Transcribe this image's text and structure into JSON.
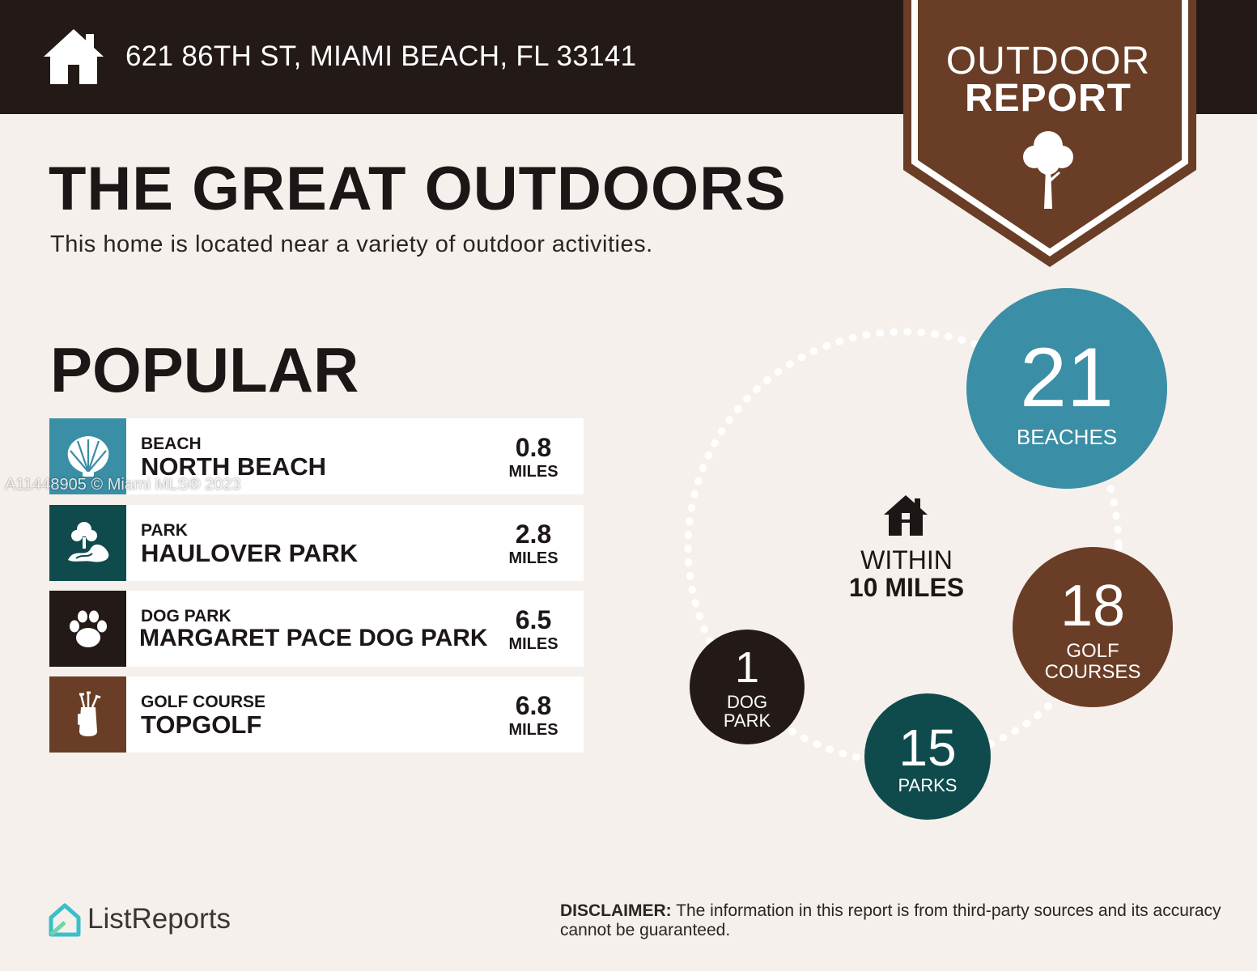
{
  "header": {
    "address": "621 86TH ST, MIAMI BEACH, FL 33141",
    "badge_line1": "OUTDOOR",
    "badge_line2": "REPORT"
  },
  "intro": {
    "title": "THE GREAT OUTDOORS",
    "subtitle": "This home is located near a variety of outdoor activities."
  },
  "popular": {
    "title": "POPULAR",
    "items": [
      {
        "category": "BEACH",
        "name": "NORTH BEACH",
        "distance": "0.8",
        "unit": "MILES",
        "icon": "shell-icon",
        "color": "#3a8ea5"
      },
      {
        "category": "PARK",
        "name": "HAULOVER PARK",
        "distance": "2.8",
        "unit": "MILES",
        "icon": "park-icon",
        "color": "#0f4b4d"
      },
      {
        "category": "DOG PARK",
        "name": "MARGARET PACE DOG PARK",
        "distance": "6.5",
        "unit": "MILES",
        "icon": "paw-icon",
        "color": "#231a17"
      },
      {
        "category": "GOLF COURSE",
        "name": "TOPGOLF",
        "distance": "6.8",
        "unit": "MILES",
        "icon": "golf-bag-icon",
        "color": "#6a3d26"
      }
    ]
  },
  "watermark": "A11448905 © Miami MLS® 2023",
  "summary": {
    "center_line1": "WITHIN",
    "center_line2": "10 MILES",
    "beaches": {
      "count": "21",
      "label": "BEACHES",
      "color": "#3a8ea5"
    },
    "golf": {
      "count": "18",
      "label1": "GOLF",
      "label2": "COURSES",
      "color": "#6a3d26"
    },
    "parks": {
      "count": "15",
      "label": "PARKS",
      "color": "#0f4b4d"
    },
    "dog": {
      "count": "1",
      "label1": "DOG",
      "label2": "PARK",
      "color": "#231a17"
    }
  },
  "footer": {
    "logo": "ListReports",
    "disclaimer_label": "DISCLAIMER:",
    "disclaimer_text": " The information in this report is from third-party sources and its accuracy cannot be guaranteed."
  }
}
